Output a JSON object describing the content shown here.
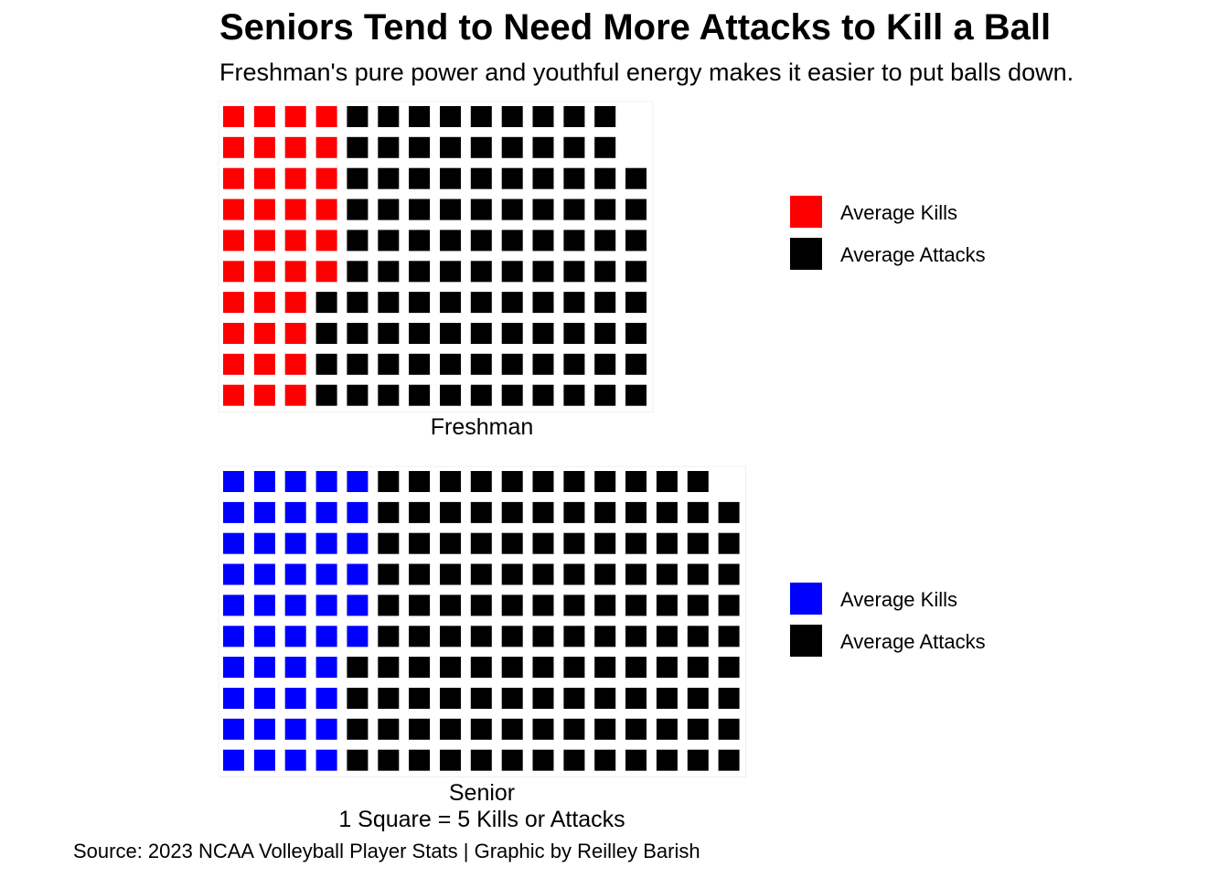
{
  "title": "Seniors Tend to Need More Attacks to Kill a Ball",
  "subtitle": "Freshman's pure power and youthful energy makes it easier to put balls down.",
  "caption": "Source: 2023 NCAA Volleyball Player Stats | Graphic by Reilley Barish",
  "unit_note": "1 Square = 5 Kills or Attacks",
  "chart_data": [
    {
      "type": "waffle",
      "panel_label": "Freshman",
      "rows": 10,
      "fill_order": "column-wise from top-left",
      "square_value": 5,
      "series": [
        {
          "name": "Average Kills",
          "squares": 36,
          "color": "#ff0000"
        },
        {
          "name": "Average Attacks",
          "squares": 102,
          "color": "#000000"
        }
      ],
      "legend_position": "right"
    },
    {
      "type": "waffle",
      "panel_label": "Senior",
      "rows": 10,
      "fill_order": "column-wise from top-left",
      "square_value": 5,
      "series": [
        {
          "name": "Average Kills",
          "squares": 46,
          "color": "#0000ff"
        },
        {
          "name": "Average Attacks",
          "squares": 123,
          "color": "#000000"
        }
      ],
      "legend_position": "right"
    }
  ]
}
